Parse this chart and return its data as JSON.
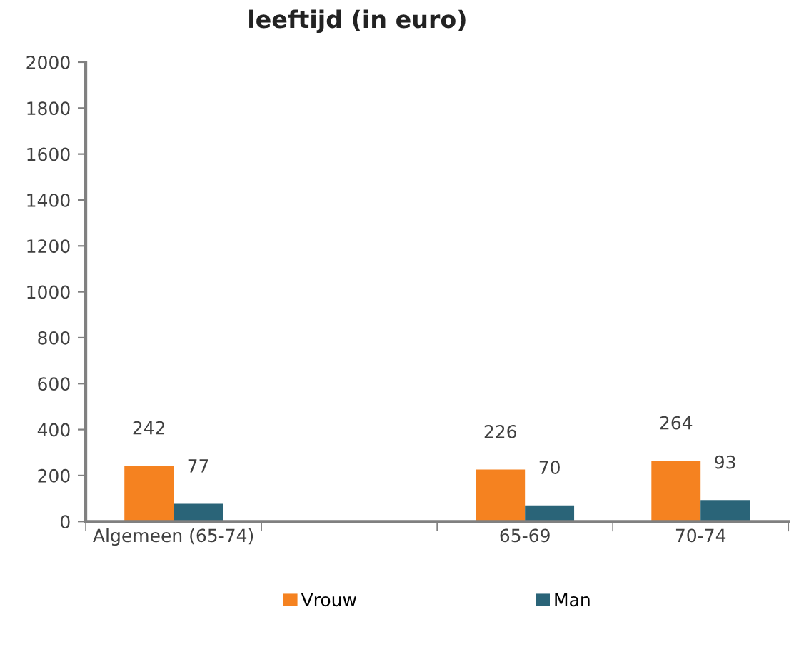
{
  "chart_data": {
    "type": "bar",
    "title": "leeftijd (in euro)",
    "categories": [
      "Algemeen (65-74)",
      null,
      "65-69",
      "70-74"
    ],
    "series": [
      {
        "name": "Vrouw",
        "color": "#f58220",
        "values": [
          242,
          null,
          226,
          264
        ]
      },
      {
        "name": "Man",
        "color": "#2a6478",
        "values": [
          77,
          null,
          70,
          93
        ]
      }
    ],
    "ylim": [
      0,
      2000
    ],
    "yticks": [
      0,
      200,
      400,
      600,
      800,
      1000,
      1200,
      1400,
      1600,
      1800,
      2000
    ],
    "data_labels": true,
    "grid": false,
    "legend": "bottom"
  }
}
